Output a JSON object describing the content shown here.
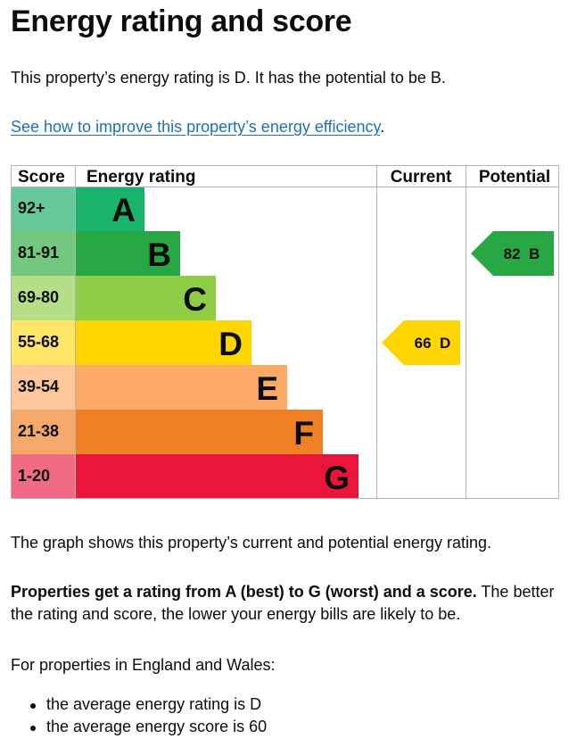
{
  "page": {
    "title": "Energy rating and score",
    "intro": "This property’s energy rating is D. It has the potential to be B.",
    "improve_link": "See how to improve this property’s energy efficiency",
    "improve_link_suffix": ".",
    "graph_description": "The graph shows this property’s current and potential energy rating.",
    "rating_info_bold": "Properties get a rating from A (best) to G (worst) and a score.",
    "rating_info_rest": " The better the rating and score, the lower your energy bills are likely to be.",
    "average_intro": "For properties in England and Wales:",
    "average_items": [
      "the average energy rating is D",
      "the average energy score is 60"
    ]
  },
  "chart_data": {
    "type": "bar",
    "headers": {
      "score": "Score",
      "rating": "Energy rating",
      "current": "Current",
      "potential": "Potential"
    },
    "bands": [
      {
        "letter": "A",
        "score_range": "92+",
        "bar_color": "#19b36b",
        "score_color": "#67c99a"
      },
      {
        "letter": "B",
        "score_range": "81-91",
        "bar_color": "#28a745",
        "score_color": "#72c87e"
      },
      {
        "letter": "C",
        "score_range": "69-80",
        "bar_color": "#8dce46",
        "score_color": "#b4df86"
      },
      {
        "letter": "D",
        "score_range": "55-68",
        "bar_color": "#ffd500",
        "score_color": "#ffe666"
      },
      {
        "letter": "E",
        "score_range": "39-54",
        "bar_color": "#fcaa65",
        "score_color": "#fdc79a"
      },
      {
        "letter": "F",
        "score_range": "21-38",
        "bar_color": "#ef8023",
        "score_color": "#f4a96a"
      },
      {
        "letter": "G",
        "score_range": "1-20",
        "bar_color": "#e9153b",
        "score_color": "#f06b83"
      }
    ],
    "current": {
      "score": 66,
      "band": "D",
      "color": "#ffd500"
    },
    "potential": {
      "score": 82,
      "band": "B",
      "color": "#28a745"
    },
    "grid_color": "#b1b4b6"
  }
}
